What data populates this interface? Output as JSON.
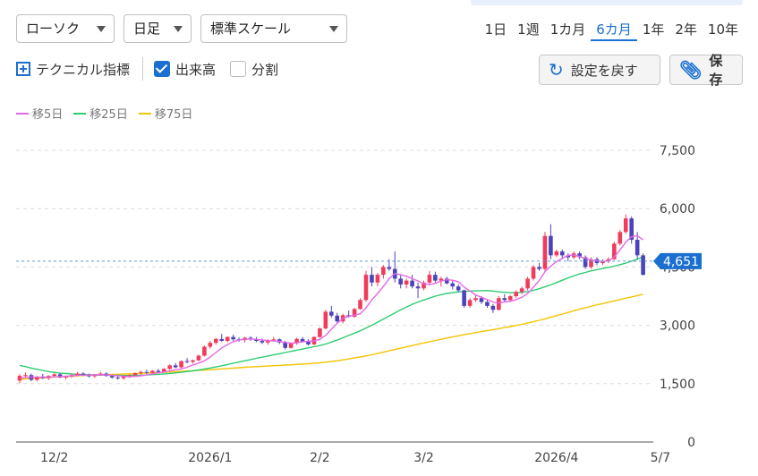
{
  "controls": {
    "chart_type": "ローソク",
    "interval": "日足",
    "scale": "標準スケール",
    "periods": [
      "1日",
      "1週",
      "1カ月",
      "6カ月",
      "1年",
      "2年",
      "10年"
    ],
    "active_period": "6カ月",
    "technical_label": "テクニカル指標",
    "volume_label": "出来高",
    "volume_checked": true,
    "split_label": "分割",
    "split_checked": false,
    "reset_label": "設定を戻す",
    "save_label": "保存"
  },
  "colors": {
    "up": "#f03c5a",
    "down": "#4b44b8",
    "ma5": "#e667e6",
    "ma25": "#2ecc71",
    "ma75": "#f5c400",
    "accent": "#1a6fd0"
  },
  "chart_data": {
    "type": "candlestick",
    "legend": [
      "移5日",
      "移25日",
      "移75日"
    ],
    "y_ticks": [
      "0",
      "1,500",
      "3,000",
      "4,500",
      "6,000",
      "7,500"
    ],
    "y_tick_values": [
      0,
      1500,
      3000,
      4500,
      6000,
      7500
    ],
    "ylim": [
      0,
      7500
    ],
    "x_ticks": [
      "12/2",
      "2026/1",
      "2/2",
      "3/2",
      "2026/4",
      "5/7"
    ],
    "x_tick_index": [
      6,
      33,
      52,
      70,
      93,
      111
    ],
    "current_price": 4651,
    "current_price_label": "4,651",
    "grid": "horizontal-dashed",
    "candles": [
      [
        1580,
        1740,
        1510,
        1700
      ],
      [
        1700,
        1790,
        1640,
        1720
      ],
      [
        1720,
        1760,
        1560,
        1600
      ],
      [
        1600,
        1700,
        1560,
        1680
      ],
      [
        1680,
        1750,
        1620,
        1640
      ],
      [
        1640,
        1720,
        1590,
        1700
      ],
      [
        1700,
        1780,
        1660,
        1740
      ],
      [
        1740,
        1770,
        1640,
        1660
      ],
      [
        1660,
        1700,
        1600,
        1680
      ],
      [
        1680,
        1760,
        1650,
        1720
      ],
      [
        1720,
        1800,
        1690,
        1760
      ],
      [
        1760,
        1790,
        1700,
        1720
      ],
      [
        1720,
        1760,
        1660,
        1690
      ],
      [
        1690,
        1750,
        1650,
        1730
      ],
      [
        1730,
        1800,
        1700,
        1760
      ],
      [
        1760,
        1790,
        1680,
        1700
      ],
      [
        1700,
        1730,
        1630,
        1660
      ],
      [
        1660,
        1700,
        1600,
        1640
      ],
      [
        1640,
        1700,
        1600,
        1680
      ],
      [
        1680,
        1740,
        1650,
        1720
      ],
      [
        1720,
        1790,
        1690,
        1770
      ],
      [
        1770,
        1830,
        1730,
        1800
      ],
      [
        1800,
        1860,
        1750,
        1780
      ],
      [
        1780,
        1850,
        1760,
        1830
      ],
      [
        1830,
        1880,
        1780,
        1800
      ],
      [
        1800,
        1900,
        1780,
        1880
      ],
      [
        1880,
        2000,
        1850,
        1970
      ],
      [
        1970,
        2030,
        1900,
        1920
      ],
      [
        1920,
        2100,
        1900,
        2080
      ],
      [
        2080,
        2160,
        2020,
        2060
      ],
      [
        2060,
        2120,
        2020,
        2100
      ],
      [
        2100,
        2250,
        2080,
        2220
      ],
      [
        2220,
        2480,
        2200,
        2450
      ],
      [
        2450,
        2600,
        2400,
        2550
      ],
      [
        2550,
        2680,
        2500,
        2650
      ],
      [
        2650,
        2780,
        2580,
        2600
      ],
      [
        2600,
        2720,
        2560,
        2700
      ],
      [
        2700,
        2760,
        2600,
        2640
      ],
      [
        2640,
        2690,
        2580,
        2620
      ],
      [
        2620,
        2700,
        2560,
        2680
      ],
      [
        2680,
        2720,
        2600,
        2640
      ],
      [
        2640,
        2700,
        2570,
        2600
      ],
      [
        2600,
        2660,
        2520,
        2560
      ],
      [
        2560,
        2640,
        2500,
        2620
      ],
      [
        2620,
        2700,
        2580,
        2640
      ],
      [
        2640,
        2660,
        2520,
        2560
      ],
      [
        2560,
        2600,
        2380,
        2420
      ],
      [
        2420,
        2560,
        2400,
        2540
      ],
      [
        2540,
        2680,
        2500,
        2650
      ],
      [
        2650,
        2700,
        2560,
        2580
      ],
      [
        2580,
        2640,
        2480,
        2510
      ],
      [
        2510,
        2720,
        2490,
        2700
      ],
      [
        2700,
        2950,
        2680,
        2920
      ],
      [
        2920,
        3400,
        2900,
        3350
      ],
      [
        3350,
        3500,
        3200,
        3250
      ],
      [
        3250,
        3320,
        3050,
        3100
      ],
      [
        3100,
        3300,
        3050,
        3260
      ],
      [
        3260,
        3380,
        3200,
        3220
      ],
      [
        3220,
        3450,
        3200,
        3420
      ],
      [
        3420,
        3700,
        3400,
        3650
      ],
      [
        3650,
        4400,
        3600,
        4300
      ],
      [
        4300,
        4500,
        4000,
        4100
      ],
      [
        4100,
        4350,
        4000,
        4300
      ],
      [
        4300,
        4550,
        4200,
        4500
      ],
      [
        4500,
        4700,
        4400,
        4450
      ],
      [
        4450,
        4900,
        4100,
        4200
      ],
      [
        4200,
        4300,
        3950,
        4050
      ],
      [
        4050,
        4200,
        3950,
        4150
      ],
      [
        4150,
        4300,
        3950,
        4000
      ],
      [
        4000,
        4100,
        3700,
        3950
      ],
      [
        3950,
        4150,
        3900,
        4100
      ],
      [
        4100,
        4400,
        4050,
        4300
      ],
      [
        4300,
        4380,
        4100,
        4150
      ],
      [
        4150,
        4250,
        4000,
        4200
      ],
      [
        4200,
        4250,
        4050,
        4080
      ],
      [
        4080,
        4150,
        3920,
        4000
      ],
      [
        4000,
        4050,
        3850,
        3900
      ],
      [
        3900,
        3920,
        3450,
        3500
      ],
      [
        3500,
        3700,
        3450,
        3650
      ],
      [
        3650,
        3800,
        3600,
        3700
      ],
      [
        3700,
        3750,
        3550,
        3600
      ],
      [
        3600,
        3650,
        3450,
        3500
      ],
      [
        3500,
        3550,
        3320,
        3400
      ],
      [
        3400,
        3750,
        3380,
        3700
      ],
      [
        3700,
        3800,
        3600,
        3650
      ],
      [
        3650,
        3780,
        3600,
        3750
      ],
      [
        3750,
        3900,
        3700,
        3860
      ],
      [
        3860,
        4000,
        3800,
        3950
      ],
      [
        3950,
        4250,
        3900,
        4200
      ],
      [
        4200,
        4550,
        4150,
        4500
      ],
      [
        4500,
        4600,
        4400,
        4450
      ],
      [
        4450,
        5400,
        4400,
        5300
      ],
      [
        5300,
        5600,
        4700,
        4800
      ],
      [
        4800,
        4950,
        4750,
        4900
      ],
      [
        4900,
        4950,
        4700,
        4800
      ],
      [
        4800,
        4850,
        4650,
        4750
      ],
      [
        4750,
        4900,
        4700,
        4850
      ],
      [
        4850,
        4900,
        4700,
        4750
      ],
      [
        4750,
        4800,
        4450,
        4500
      ],
      [
        4500,
        4750,
        4450,
        4700
      ],
      [
        4700,
        4750,
        4550,
        4600
      ],
      [
        4600,
        4700,
        4550,
        4650
      ],
      [
        4650,
        4750,
        4600,
        4700
      ],
      [
        4700,
        5150,
        4680,
        5100
      ],
      [
        5100,
        5450,
        5050,
        5400
      ],
      [
        5400,
        5850,
        5350,
        5750
      ],
      [
        5750,
        5800,
        5100,
        5200
      ],
      [
        5200,
        5400,
        4700,
        4800
      ],
      [
        4800,
        4850,
        4280,
        4300
      ]
    ],
    "ma5": [
      1640,
      1660,
      1670,
      1665,
      1668,
      1670,
      1678,
      1685,
      1690,
      1700,
      1712,
      1718,
      1722,
      1726,
      1730,
      1726,
      1715,
      1704,
      1690,
      1680,
      1686,
      1702,
      1728,
      1750,
      1778,
      1800,
      1830,
      1860,
      1880,
      1920,
      1980,
      2030,
      2090,
      2180,
      2300,
      2420,
      2500,
      2580,
      2620,
      2640,
      2650,
      2640,
      2620,
      2610,
      2600,
      2590,
      2560,
      2540,
      2550,
      2580,
      2590,
      2600,
      2640,
      2740,
      2900,
      3050,
      3180,
      3230,
      3260,
      3300,
      3450,
      3650,
      3820,
      4000,
      4200,
      4330,
      4300,
      4260,
      4200,
      4140,
      4070,
      4050,
      4080,
      4140,
      4170,
      4160,
      4120,
      3980,
      3880,
      3780,
      3720,
      3660,
      3600,
      3570,
      3600,
      3620,
      3660,
      3720,
      3820,
      3980,
      4150,
      4380,
      4520,
      4640,
      4720,
      4800,
      4810,
      4770,
      4720,
      4680,
      4660,
      4640,
      4660,
      4760,
      4940,
      5140,
      5280,
      5300,
      5200
    ],
    "ma25": [
      1970,
      1940,
      1900,
      1870,
      1840,
      1810,
      1790,
      1770,
      1760,
      1750,
      1740,
      1735,
      1730,
      1725,
      1720,
      1718,
      1716,
      1714,
      1712,
      1712,
      1714,
      1718,
      1724,
      1732,
      1740,
      1750,
      1762,
      1776,
      1792,
      1810,
      1830,
      1852,
      1876,
      1902,
      1930,
      1960,
      1992,
      2024,
      2056,
      2088,
      2120,
      2150,
      2180,
      2210,
      2240,
      2270,
      2300,
      2330,
      2360,
      2390,
      2420,
      2450,
      2480,
      2520,
      2570,
      2620,
      2680,
      2740,
      2800,
      2860,
      2930,
      3000,
      3080,
      3160,
      3240,
      3320,
      3400,
      3470,
      3540,
      3600,
      3650,
      3700,
      3750,
      3790,
      3820,
      3840,
      3860,
      3870,
      3880,
      3885,
      3890,
      3895,
      3880,
      3860,
      3850,
      3840,
      3840,
      3850,
      3870,
      3900,
      3940,
      3990,
      4040,
      4100,
      4160,
      4220,
      4270,
      4320,
      4360,
      4400,
      4430,
      4460,
      4490,
      4520,
      4560,
      4600,
      4650,
      4700,
      4760
    ],
    "ma75": [
      1610,
      1620,
      1630,
      1640,
      1650,
      1660,
      1670,
      1678,
      1685,
      1692,
      1700,
      1706,
      1712,
      1718,
      1724,
      1730,
      1736,
      1742,
      1748,
      1754,
      1760,
      1767,
      1774,
      1781,
      1788,
      1795,
      1802,
      1810,
      1818,
      1826,
      1834,
      1842,
      1850,
      1860,
      1870,
      1880,
      1890,
      1900,
      1910,
      1920,
      1930,
      1938,
      1946,
      1954,
      1962,
      1970,
      1978,
      1986,
      1994,
      2002,
      2010,
      2022,
      2036,
      2052,
      2070,
      2090,
      2112,
      2136,
      2160,
      2186,
      2214,
      2244,
      2276,
      2310,
      2344,
      2378,
      2412,
      2446,
      2480,
      2514,
      2546,
      2578,
      2610,
      2640,
      2670,
      2700,
      2730,
      2758,
      2786,
      2812,
      2838,
      2864,
      2890,
      2916,
      2942,
      2968,
      2996,
      3026,
      3058,
      3092,
      3128,
      3166,
      3206,
      3248,
      3290,
      3332,
      3374,
      3414,
      3452,
      3490,
      3526,
      3560,
      3594,
      3628,
      3662,
      3696,
      3730,
      3764,
      3800
    ]
  }
}
